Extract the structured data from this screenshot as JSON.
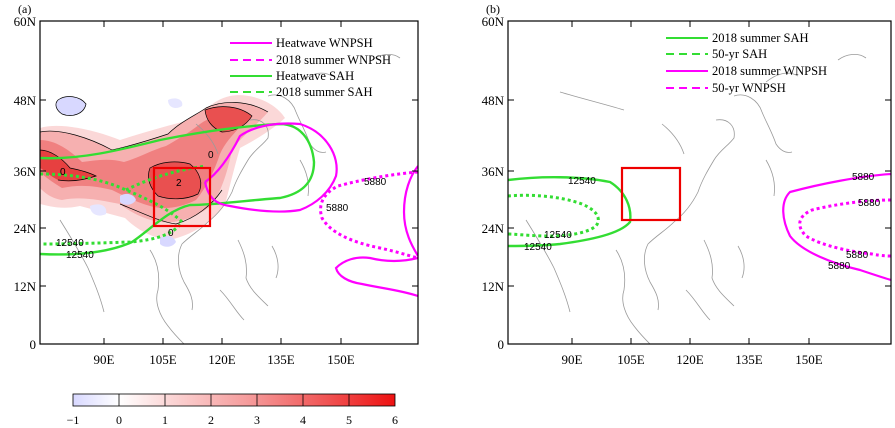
{
  "panels": [
    {
      "id": "a",
      "label": "(a)",
      "lat_ticks": [
        "60N",
        "48N",
        "36N",
        "24N",
        "12N",
        "0"
      ],
      "lon_ticks": [
        "90E",
        "105E",
        "120E",
        "135E",
        "150E"
      ],
      "legend": [
        {
          "text": "Heatwave WNPSH",
          "color": "#ff00ff",
          "style": "solid"
        },
        {
          "text": "2018 summer WNPSH",
          "color": "#ff00ff",
          "style": "dashed"
        },
        {
          "text": "Heatwave SAH",
          "color": "#33dd33",
          "style": "solid"
        },
        {
          "text": "2018 summer SAH",
          "color": "#33dd33",
          "style": "dashed"
        }
      ],
      "contour_labels": [
        "12540",
        "12540",
        "5880",
        "5880",
        "0",
        "0",
        "0",
        "2"
      ]
    },
    {
      "id": "b",
      "label": "(b)",
      "lat_ticks": [
        "60N",
        "48N",
        "36N",
        "24N",
        "12N",
        "0"
      ],
      "lon_ticks": [
        "90E",
        "105E",
        "120E",
        "135E",
        "150E"
      ],
      "legend": [
        {
          "text": "2018 summer SAH",
          "color": "#33dd33",
          "style": "solid"
        },
        {
          "text": "50-yr SAH",
          "color": "#33dd33",
          "style": "dashed"
        },
        {
          "text": "2018 summer WNPSH",
          "color": "#ff00ff",
          "style": "solid"
        },
        {
          "text": "50-yr WNPSH",
          "color": "#ff00ff",
          "style": "dashed"
        }
      ],
      "contour_labels": [
        "12540",
        "12540",
        "12540",
        "5880",
        "5880",
        "5880",
        "5880"
      ]
    }
  ],
  "colorbar": {
    "ticks": [
      "−1",
      "0",
      "1",
      "2",
      "3",
      "4",
      "5",
      "6"
    ],
    "range": [
      -1,
      6
    ],
    "color_low": "#d8d8ff",
    "color_mid": "#ffffff",
    "color_high": "#ee1111"
  },
  "colors": {
    "wnpsh": "#ff00ff",
    "sah": "#33dd33",
    "box": "#ee0000"
  }
}
